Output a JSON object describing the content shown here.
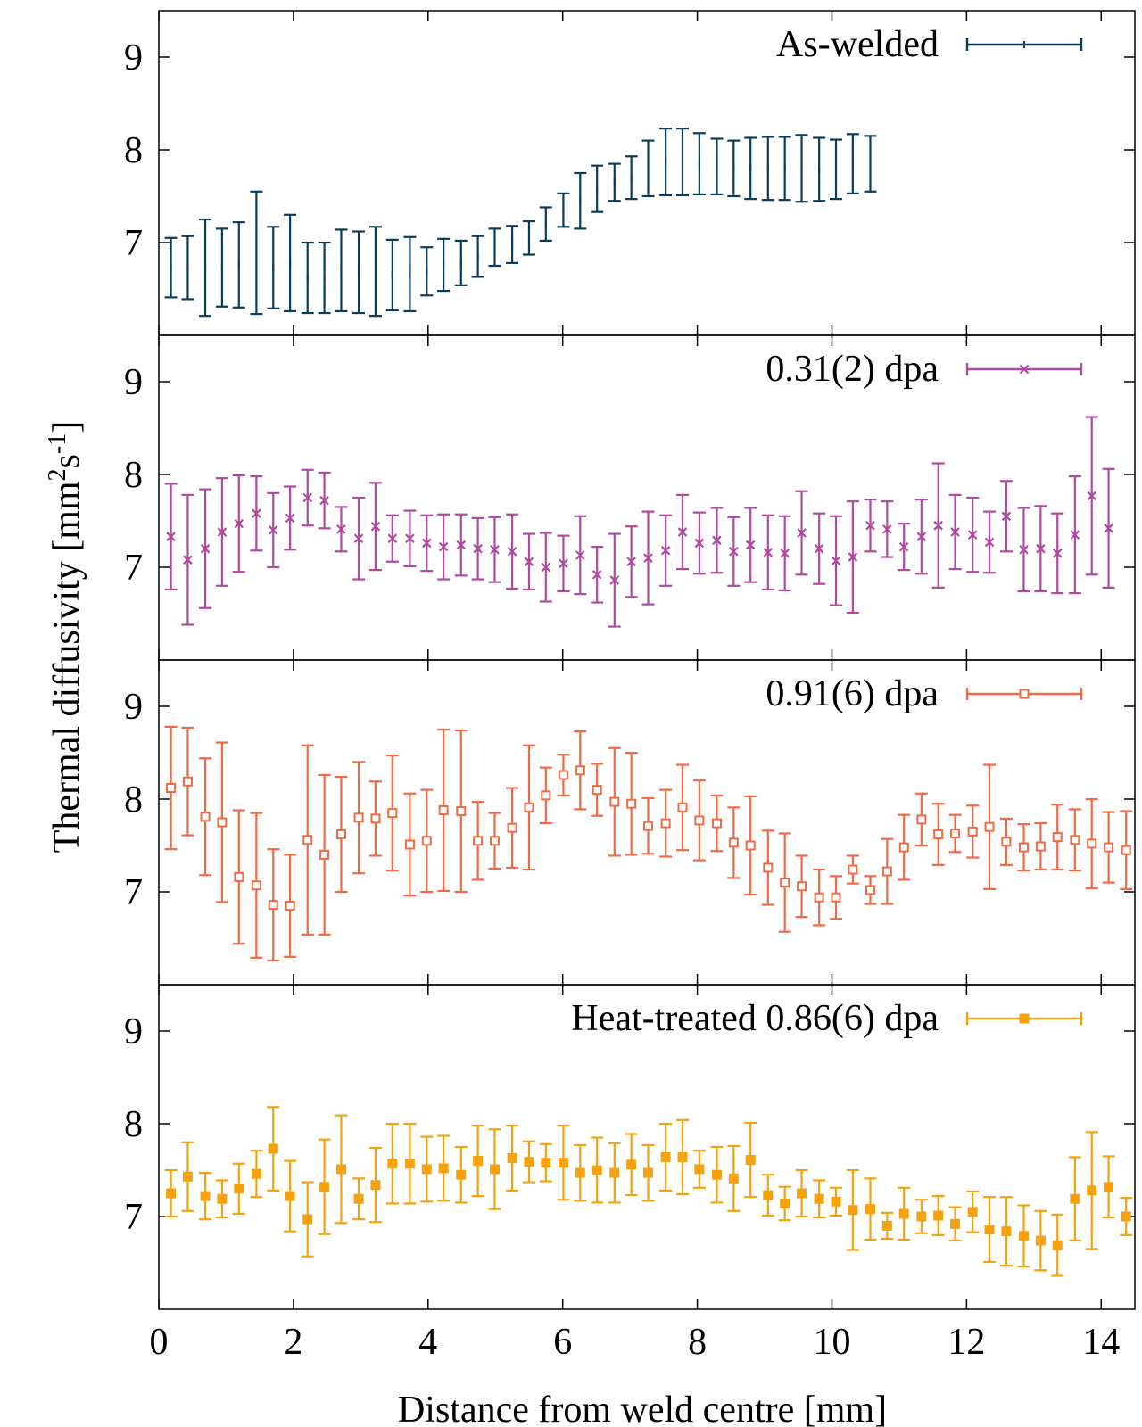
{
  "figure": {
    "xlabel": "Distance from weld centre [mm]",
    "ylabel_prefix": "Thermal diffusivity [mm",
    "ylabel_sup1": "2",
    "ylabel_mid": "s",
    "ylabel_sup2": "-1",
    "ylabel_suffix": "]",
    "x_ticks": [
      0,
      2,
      4,
      6,
      8,
      10,
      12,
      14
    ],
    "y_ticks": [
      7,
      8,
      9
    ]
  },
  "chart_data": [
    {
      "type": "scatter",
      "name": "As-welded",
      "color": "#0b3d5a",
      "marker": "tick",
      "xlim": [
        0,
        14.5
      ],
      "ylim": [
        6.0,
        9.5
      ],
      "x": [
        0.18,
        0.43,
        0.69,
        0.94,
        1.19,
        1.45,
        1.7,
        1.95,
        2.21,
        2.46,
        2.71,
        2.97,
        3.22,
        3.47,
        3.73,
        3.98,
        4.23,
        4.49,
        4.74,
        4.99,
        5.25,
        5.5,
        5.75,
        6.01,
        6.26,
        6.51,
        6.77,
        7.02,
        7.27,
        7.53,
        7.78,
        8.03,
        8.29,
        8.54,
        8.79,
        9.05,
        9.3,
        9.55,
        9.81,
        10.06,
        10.31,
        10.57
      ],
      "y": [
        6.73,
        6.73,
        6.73,
        6.73,
        6.76,
        6.89,
        6.73,
        6.78,
        6.62,
        6.62,
        6.7,
        6.68,
        6.69,
        6.65,
        6.66,
        6.69,
        6.76,
        6.78,
        6.85,
        6.95,
        6.98,
        7.05,
        7.2,
        7.35,
        7.45,
        7.58,
        7.65,
        7.7,
        7.8,
        7.87,
        7.87,
        7.85,
        7.82,
        7.8,
        7.8,
        7.8,
        7.8,
        7.8,
        7.79,
        7.79,
        7.85,
        7.85
      ],
      "yerr": [
        0.32,
        0.34,
        0.52,
        0.42,
        0.46,
        0.66,
        0.44,
        0.52,
        0.38,
        0.38,
        0.44,
        0.44,
        0.48,
        0.38,
        0.4,
        0.26,
        0.28,
        0.24,
        0.22,
        0.2,
        0.2,
        0.18,
        0.18,
        0.18,
        0.3,
        0.25,
        0.2,
        0.23,
        0.3,
        0.36,
        0.36,
        0.33,
        0.3,
        0.3,
        0.33,
        0.34,
        0.34,
        0.36,
        0.34,
        0.32,
        0.32,
        0.3
      ]
    },
    {
      "type": "scatter",
      "name": "0.31(2) dpa",
      "color": "#b04a9e",
      "marker": "x",
      "xlim": [
        0,
        14.5
      ],
      "ylim": [
        6.0,
        9.5
      ],
      "x": [
        0.18,
        0.43,
        0.69,
        0.94,
        1.19,
        1.45,
        1.7,
        1.95,
        2.21,
        2.46,
        2.71,
        2.97,
        3.22,
        3.47,
        3.73,
        3.98,
        4.23,
        4.49,
        4.74,
        4.99,
        5.25,
        5.5,
        5.75,
        6.01,
        6.26,
        6.51,
        6.77,
        7.02,
        7.27,
        7.53,
        7.78,
        8.03,
        8.29,
        8.54,
        8.79,
        9.05,
        9.3,
        9.55,
        9.81,
        10.06,
        10.31,
        10.57,
        10.82,
        11.07,
        11.33,
        11.58,
        11.83,
        12.09,
        12.34,
        12.59,
        12.85,
        13.1,
        13.35,
        13.61,
        13.86,
        14.11
      ],
      "y": [
        7.33,
        7.08,
        7.2,
        7.38,
        7.47,
        7.58,
        7.4,
        7.53,
        7.75,
        7.72,
        7.41,
        7.31,
        7.44,
        7.31,
        7.31,
        7.26,
        7.22,
        7.24,
        7.2,
        7.19,
        7.17,
        7.06,
        7.0,
        7.04,
        7.13,
        6.92,
        6.86,
        7.06,
        7.1,
        7.18,
        7.38,
        7.26,
        7.29,
        7.17,
        7.24,
        7.16,
        7.15,
        7.37,
        7.2,
        7.07,
        7.11,
        7.45,
        7.41,
        7.22,
        7.33,
        7.45,
        7.38,
        7.35,
        7.27,
        7.55,
        7.19,
        7.2,
        7.15,
        7.35,
        7.77,
        7.42
      ],
      "yerr": [
        0.57,
        0.7,
        0.64,
        0.58,
        0.52,
        0.4,
        0.4,
        0.34,
        0.3,
        0.3,
        0.24,
        0.44,
        0.47,
        0.25,
        0.3,
        0.3,
        0.35,
        0.33,
        0.33,
        0.35,
        0.4,
        0.3,
        0.37,
        0.3,
        0.42,
        0.3,
        0.5,
        0.38,
        0.5,
        0.38,
        0.4,
        0.33,
        0.35,
        0.37,
        0.4,
        0.4,
        0.4,
        0.45,
        0.38,
        0.48,
        0.6,
        0.28,
        0.3,
        0.25,
        0.4,
        0.67,
        0.4,
        0.4,
        0.33,
        0.38,
        0.45,
        0.46,
        0.43,
        0.63,
        0.85,
        0.64
      ]
    },
    {
      "type": "scatter",
      "name": "0.91(6) dpa",
      "color": "#f26a45",
      "marker": "open-square",
      "xlim": [
        0,
        14.5
      ],
      "ylim": [
        6.0,
        9.5
      ],
      "x": [
        0.18,
        0.43,
        0.69,
        0.94,
        1.19,
        1.45,
        1.7,
        1.95,
        2.21,
        2.46,
        2.71,
        2.97,
        3.22,
        3.47,
        3.73,
        3.98,
        4.23,
        4.49,
        4.74,
        4.99,
        5.25,
        5.5,
        5.75,
        6.01,
        6.26,
        6.51,
        6.77,
        7.02,
        7.27,
        7.53,
        7.78,
        8.03,
        8.29,
        8.54,
        8.79,
        9.05,
        9.3,
        9.55,
        9.81,
        10.06,
        10.31,
        10.57,
        10.82,
        11.07,
        11.33,
        11.58,
        11.83,
        12.09,
        12.34,
        12.59,
        12.85,
        13.1,
        13.35,
        13.61,
        13.86,
        14.11,
        14.37
      ],
      "y": [
        8.12,
        8.19,
        7.81,
        7.75,
        7.16,
        7.07,
        6.86,
        6.85,
        7.56,
        7.4,
        7.62,
        7.8,
        7.79,
        7.85,
        7.51,
        7.55,
        7.88,
        7.87,
        7.55,
        7.55,
        7.69,
        7.91,
        8.04,
        8.26,
        8.31,
        8.1,
        7.97,
        7.95,
        7.71,
        7.74,
        7.91,
        7.77,
        7.74,
        7.53,
        7.5,
        7.26,
        7.1,
        7.06,
        6.94,
        6.94,
        7.24,
        7.02,
        7.22,
        7.48,
        7.78,
        7.62,
        7.63,
        7.65,
        7.7,
        7.54,
        7.48,
        7.49,
        7.59,
        7.56,
        7.52,
        7.48,
        7.45
      ],
      "yerr": [
        0.66,
        0.58,
        0.63,
        0.86,
        0.72,
        0.78,
        0.6,
        0.55,
        1.02,
        0.86,
        0.62,
        0.6,
        0.4,
        0.62,
        0.55,
        0.55,
        0.87,
        0.87,
        0.42,
        0.3,
        0.43,
        0.67,
        0.3,
        0.22,
        0.42,
        0.28,
        0.58,
        0.55,
        0.3,
        0.36,
        0.46,
        0.43,
        0.3,
        0.38,
        0.53,
        0.4,
        0.53,
        0.33,
        0.3,
        0.23,
        0.15,
        0.15,
        0.35,
        0.35,
        0.28,
        0.33,
        0.2,
        0.28,
        0.67,
        0.25,
        0.25,
        0.25,
        0.35,
        0.33,
        0.48,
        0.38,
        0.42
      ]
    },
    {
      "type": "scatter",
      "name": "Heat-treated 0.86(6) dpa",
      "color": "#f5a20f",
      "marker": "filled-square",
      "xlim": [
        0,
        14.5
      ],
      "ylim": [
        6.0,
        9.5
      ],
      "x": [
        0.18,
        0.43,
        0.69,
        0.94,
        1.19,
        1.45,
        1.7,
        1.95,
        2.21,
        2.46,
        2.71,
        2.97,
        3.22,
        3.47,
        3.73,
        3.98,
        4.23,
        4.49,
        4.74,
        4.99,
        5.25,
        5.5,
        5.75,
        6.01,
        6.26,
        6.51,
        6.77,
        7.02,
        7.27,
        7.53,
        7.78,
        8.03,
        8.29,
        8.54,
        8.79,
        9.05,
        9.3,
        9.55,
        9.81,
        10.06,
        10.31,
        10.57,
        10.82,
        11.07,
        11.33,
        11.58,
        11.83,
        12.09,
        12.34,
        12.59,
        12.85,
        13.1,
        13.35,
        13.61,
        13.86,
        14.11,
        14.37
      ],
      "y": [
        7.25,
        7.43,
        7.22,
        7.19,
        7.3,
        7.46,
        7.73,
        7.22,
        6.97,
        7.32,
        7.51,
        7.19,
        7.34,
        7.57,
        7.57,
        7.51,
        7.52,
        7.45,
        7.6,
        7.51,
        7.63,
        7.59,
        7.58,
        7.58,
        7.47,
        7.5,
        7.47,
        7.56,
        7.47,
        7.64,
        7.64,
        7.51,
        7.45,
        7.41,
        7.61,
        7.23,
        7.14,
        7.25,
        7.19,
        7.16,
        7.07,
        7.08,
        6.9,
        7.03,
        7.0,
        7.01,
        6.92,
        7.05,
        6.86,
        6.84,
        6.79,
        6.74,
        6.69,
        7.19,
        7.28,
        7.32,
        7.0
      ],
      "yerr": [
        0.25,
        0.37,
        0.25,
        0.2,
        0.27,
        0.25,
        0.45,
        0.38,
        0.4,
        0.51,
        0.58,
        0.22,
        0.4,
        0.43,
        0.43,
        0.35,
        0.35,
        0.3,
        0.38,
        0.43,
        0.35,
        0.22,
        0.2,
        0.4,
        0.3,
        0.35,
        0.32,
        0.33,
        0.3,
        0.36,
        0.4,
        0.2,
        0.3,
        0.35,
        0.4,
        0.22,
        0.18,
        0.25,
        0.2,
        0.15,
        0.43,
        0.33,
        0.14,
        0.28,
        0.18,
        0.21,
        0.18,
        0.22,
        0.35,
        0.37,
        0.33,
        0.32,
        0.33,
        0.45,
        0.63,
        0.33,
        0.2
      ]
    }
  ]
}
